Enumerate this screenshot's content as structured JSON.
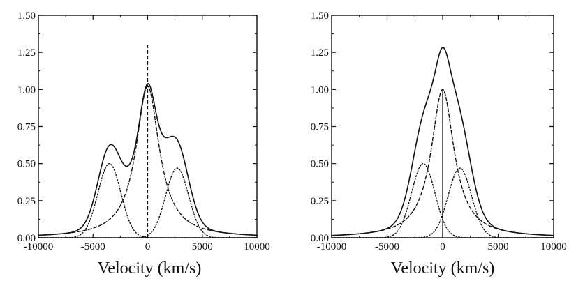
{
  "chart_data": [
    {
      "type": "line",
      "panel": "left",
      "title": "",
      "xlabel": "Velocity (km/s)",
      "ylabel": "",
      "xlim": [
        -10000,
        10000
      ],
      "ylim": [
        0,
        1.5
      ],
      "xticks": [
        "-10000",
        "-5000",
        "0",
        "5000",
        "10000"
      ],
      "yticks": [
        "0.00",
        "0.25",
        "0.50",
        "0.75",
        "1.00",
        "1.25",
        "1.50"
      ],
      "xtick_values": [
        -10000,
        -5000,
        0,
        5000,
        10000
      ],
      "ytick_values": [
        0,
        0.25,
        0.5,
        0.75,
        1.0,
        1.25,
        1.5
      ],
      "grid": false,
      "legend": "none",
      "series": [
        {
          "name": "blue component",
          "style": "dotted",
          "kind": "gaussian",
          "amp": 0.5,
          "center": -3500,
          "sigma": 1050
        },
        {
          "name": "red component",
          "style": "dotted",
          "kind": "gaussian",
          "amp": 0.47,
          "center": 2700,
          "sigma": 1050
        },
        {
          "name": "central component",
          "style": "dashed",
          "kind": "lorentzian",
          "amp": 1.02,
          "center": 0,
          "hwhm": 1300
        },
        {
          "name": "total profile",
          "style": "solid",
          "kind": "sum"
        },
        {
          "name": "line center",
          "style": "dashed",
          "kind": "vline",
          "x": 0,
          "y0": 0,
          "y1": 1.3
        }
      ]
    },
    {
      "type": "line",
      "panel": "right",
      "title": "",
      "xlabel": "Velocity (km/s)",
      "ylabel": "",
      "xlim": [
        -10000,
        10000
      ],
      "ylim": [
        0,
        1.5
      ],
      "xticks": [
        "-10000",
        "-5000",
        "0",
        "5000",
        "10000"
      ],
      "yticks": [
        "0.00",
        "0.25",
        "0.50",
        "0.75",
        "1.00",
        "1.25",
        "1.50"
      ],
      "xtick_values": [
        -10000,
        -5000,
        0,
        5000,
        10000
      ],
      "ytick_values": [
        0,
        0.25,
        0.5,
        0.75,
        1.0,
        1.25,
        1.5
      ],
      "grid": false,
      "legend": "none",
      "series": [
        {
          "name": "blue component",
          "style": "dotted",
          "kind": "gaussian",
          "amp": 0.5,
          "center": -1750,
          "sigma": 1050
        },
        {
          "name": "red component",
          "style": "dotted",
          "kind": "gaussian",
          "amp": 0.47,
          "center": 1550,
          "sigma": 1050
        },
        {
          "name": "central component",
          "style": "dashed",
          "kind": "lorentzian",
          "amp": 1.0,
          "center": 0,
          "hwhm": 1250
        },
        {
          "name": "total profile",
          "style": "solid",
          "kind": "sum"
        },
        {
          "name": "line center",
          "style": "solid",
          "kind": "vline",
          "x": 0,
          "y0": 0,
          "y1": 1.0
        }
      ]
    }
  ]
}
